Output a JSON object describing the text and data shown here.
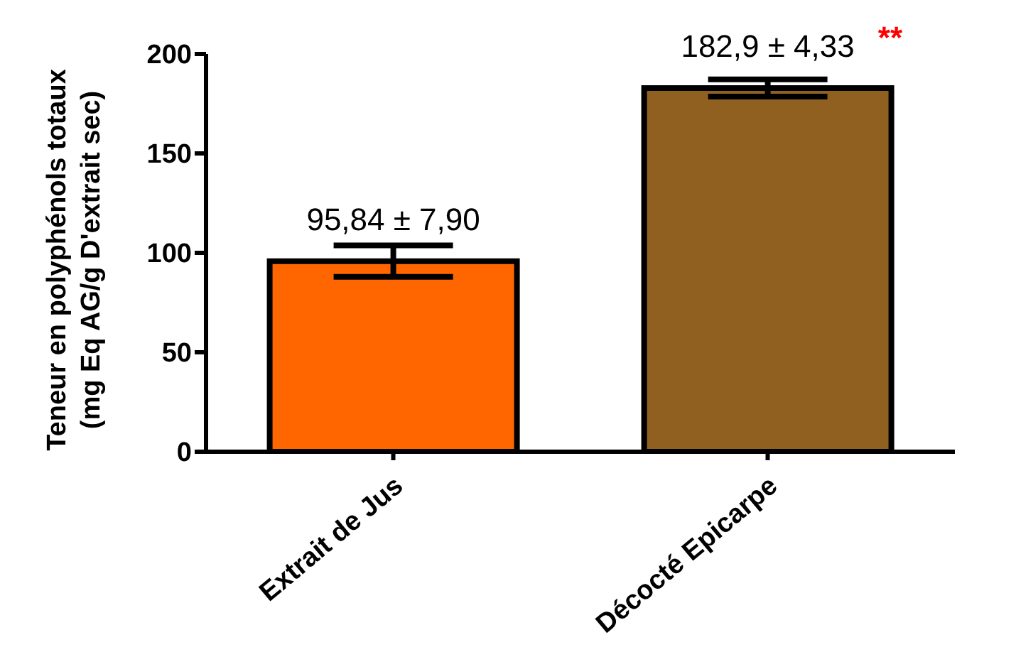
{
  "chart_data": {
    "type": "bar",
    "ylabel": "Teneur en polyphénols totaux\n(mg Eq AG/g D'extrait sec)",
    "categories": [
      "Extrait de Jus",
      "Décocté  Epicarpe"
    ],
    "values": [
      95.84,
      182.9
    ],
    "colors": [
      "#ff6600",
      "#8f6020"
    ],
    "errors": [
      7.9,
      4.33
    ],
    "value_labels": [
      "95,84 ± 7,90",
      "182,9 ± 4,33"
    ],
    "annotations": [
      "**"
    ],
    "ylim": [
      0,
      200
    ],
    "yticks": [
      0,
      50,
      100,
      150,
      200
    ],
    "grid": false,
    "legend": false
  }
}
